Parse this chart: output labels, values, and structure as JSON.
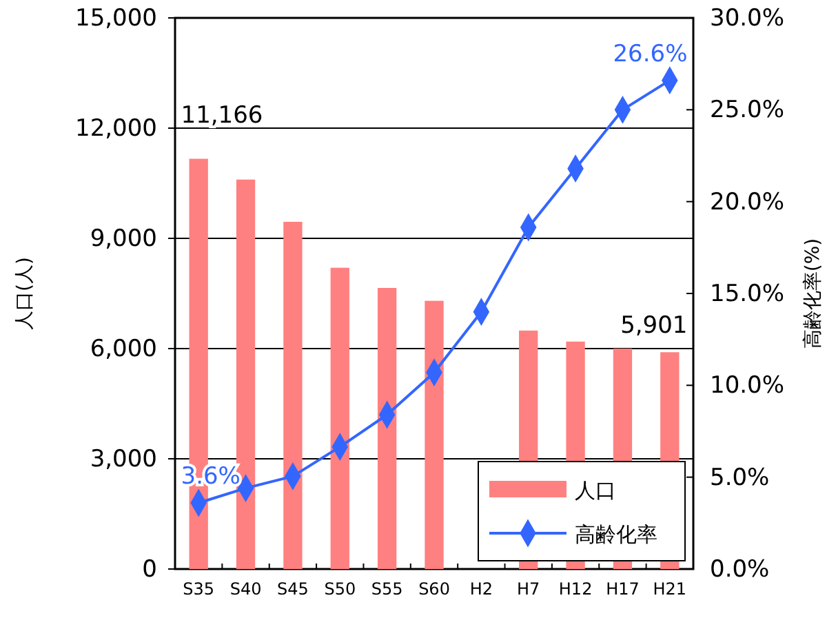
{
  "chart_data": {
    "type": "bar",
    "ylabel": "人口(人)",
    "y2label": "高齢化率(%)",
    "categories": [
      "S35",
      "S40",
      "S45",
      "S50",
      "S55",
      "S60",
      "H2",
      "H7",
      "H12",
      "H17",
      "H21"
    ],
    "series": [
      {
        "name": "人口",
        "color": "#ff8080",
        "values": [
          11166,
          10600,
          9450,
          8200,
          7650,
          7300,
          null,
          6490,
          6190,
          6000,
          5901
        ],
        "value_labels": [
          "11,166",
          null,
          null,
          null,
          null,
          null,
          null,
          null,
          null,
          null,
          "5,901"
        ]
      },
      {
        "name": "高齢化率",
        "type": "line",
        "axis": "y2",
        "color": "#3366ff",
        "marker": "diamond",
        "line_style": "solid",
        "values": [
          3.6,
          4.4,
          5.05,
          6.65,
          8.4,
          10.7,
          14.0,
          18.6,
          21.8,
          25.0,
          26.6
        ],
        "value_labels": [
          "3.6%",
          null,
          null,
          null,
          null,
          null,
          null,
          null,
          null,
          null,
          "26.6%"
        ]
      }
    ],
    "ylim": [
      0,
      15000
    ],
    "yticks": [
      {
        "value": 0,
        "label": "0"
      },
      {
        "value": 3000,
        "label": "3,000"
      },
      {
        "value": 6000,
        "label": "6,000"
      },
      {
        "value": 9000,
        "label": "9,000"
      },
      {
        "value": 12000,
        "label": "12,000"
      },
      {
        "value": 15000,
        "label": "15,000"
      }
    ],
    "y2lim": [
      0,
      30
    ],
    "y2ticks": [
      {
        "value": 0,
        "label": "0.0%"
      },
      {
        "value": 5,
        "label": "5.0%"
      },
      {
        "value": 10,
        "label": "10.0%"
      },
      {
        "value": 15,
        "label": "15.0%"
      },
      {
        "value": 20,
        "label": "20.0%"
      },
      {
        "value": 25,
        "label": "25.0%"
      },
      {
        "value": 30,
        "label": "30.0%"
      }
    ],
    "grid": "y",
    "legend": "bottom right"
  }
}
